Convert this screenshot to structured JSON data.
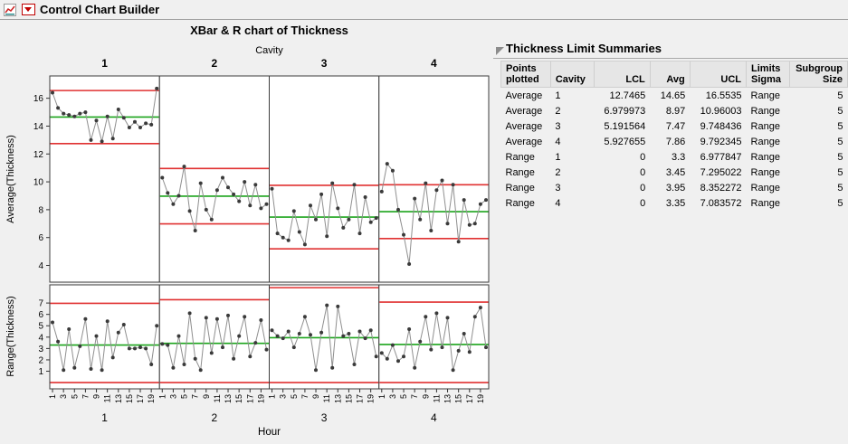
{
  "window": {
    "title": "Control Chart Builder"
  },
  "chart_data": {
    "type": "line",
    "title": "XBar & R chart of Thickness",
    "panel_axis_label": "Cavity",
    "xlabel": "Hour",
    "panels": [
      "1",
      "2",
      "3",
      "4"
    ],
    "hours": [
      1,
      2,
      3,
      4,
      5,
      6,
      7,
      8,
      9,
      10,
      11,
      12,
      13,
      14,
      15,
      16,
      17,
      18,
      19,
      20
    ],
    "x_tick_labels": [
      "1",
      "3",
      "5",
      "7",
      "9",
      "11",
      "13",
      "15",
      "17",
      "19"
    ],
    "colors": {
      "limit_line": "#e03131",
      "center_line": "#1ca41c",
      "point": "#3a3a3a",
      "connector": "#8f8f8f"
    },
    "xbar": {
      "ylabel": "Average(Thickness)",
      "ylim": [
        2.8,
        17.6
      ],
      "yticks": [
        4,
        6,
        8,
        10,
        12,
        14,
        16
      ],
      "series": [
        {
          "panel": "1",
          "lcl": 12.7465,
          "center": 14.65,
          "ucl": 16.5535,
          "values": [
            16.4,
            15.3,
            14.9,
            14.8,
            14.7,
            14.9,
            15.0,
            13.0,
            14.4,
            12.9,
            14.7,
            13.1,
            15.2,
            14.6,
            13.9,
            14.3,
            13.9,
            14.2,
            14.1,
            16.7
          ]
        },
        {
          "panel": "2",
          "lcl": 6.979973,
          "center": 8.97,
          "ucl": 10.96003,
          "values": [
            10.3,
            9.2,
            8.4,
            9.0,
            11.1,
            7.9,
            6.5,
            9.9,
            8.0,
            7.3,
            9.4,
            10.3,
            9.6,
            9.1,
            8.6,
            10.0,
            8.3,
            9.8,
            8.1,
            8.4
          ]
        },
        {
          "panel": "3",
          "lcl": 5.191564,
          "center": 7.47,
          "ucl": 9.748436,
          "values": [
            9.5,
            6.3,
            6.0,
            5.8,
            7.9,
            6.4,
            5.5,
            8.3,
            7.3,
            9.1,
            6.1,
            9.9,
            8.1,
            6.7,
            7.3,
            9.8,
            6.3,
            8.9,
            7.1,
            7.4
          ]
        },
        {
          "panel": "4",
          "lcl": 5.927655,
          "center": 7.86,
          "ucl": 9.792345,
          "values": [
            9.3,
            11.3,
            10.8,
            8.0,
            6.2,
            4.1,
            8.8,
            7.3,
            9.9,
            6.5,
            9.4,
            10.1,
            7.0,
            9.8,
            5.7,
            8.7,
            6.9,
            7.0,
            8.4,
            8.7
          ]
        }
      ]
    },
    "range": {
      "ylabel": "Range(Thickness)",
      "ylim": [
        -0.55,
        8.6
      ],
      "yticks": [
        1,
        2,
        3,
        4,
        5,
        6,
        7
      ],
      "series": [
        {
          "panel": "1",
          "lcl": 0,
          "center": 3.3,
          "ucl": 6.977847,
          "values": [
            5.3,
            3.6,
            1.1,
            4.7,
            1.3,
            3.2,
            5.6,
            1.2,
            4.1,
            1.1,
            5.4,
            2.2,
            4.4,
            5.1,
            3.0,
            3.0,
            3.1,
            3.0,
            1.6,
            5.0
          ]
        },
        {
          "panel": "2",
          "lcl": 0,
          "center": 3.45,
          "ucl": 7.295022,
          "values": [
            3.4,
            3.3,
            1.3,
            4.1,
            1.6,
            6.1,
            2.1,
            1.1,
            5.7,
            2.6,
            5.6,
            3.1,
            5.9,
            2.1,
            4.1,
            5.8,
            2.3,
            3.5,
            5.5,
            2.9
          ]
        },
        {
          "panel": "3",
          "lcl": 0,
          "center": 3.95,
          "ucl": 8.352272,
          "values": [
            4.6,
            4.1,
            3.9,
            4.5,
            3.1,
            4.3,
            5.8,
            4.2,
            1.1,
            4.4,
            6.8,
            1.3,
            6.7,
            4.1,
            4.3,
            1.6,
            4.5,
            3.9,
            4.6,
            2.3
          ]
        },
        {
          "panel": "4",
          "lcl": 0,
          "center": 3.35,
          "ucl": 7.083572,
          "values": [
            2.6,
            2.1,
            3.3,
            1.9,
            2.3,
            4.7,
            1.3,
            3.6,
            5.8,
            2.9,
            6.1,
            3.1,
            5.7,
            1.1,
            2.8,
            4.3,
            2.7,
            5.8,
            6.6,
            3.1
          ]
        }
      ]
    }
  },
  "summary": {
    "title": "Thickness Limit Summaries",
    "columns": [
      {
        "lines": [
          "Points",
          "plotted"
        ],
        "align": "left"
      },
      {
        "lines": [
          "Cavity"
        ],
        "align": "left"
      },
      {
        "lines": [
          "LCL"
        ],
        "align": "right"
      },
      {
        "lines": [
          "Avg"
        ],
        "align": "right"
      },
      {
        "lines": [
          "UCL"
        ],
        "align": "right"
      },
      {
        "lines": [
          "Limits",
          "Sigma"
        ],
        "align": "left"
      },
      {
        "lines": [
          "Subgroup",
          "Size"
        ],
        "align": "right"
      }
    ],
    "rows": [
      [
        "Average",
        "1",
        "12.7465",
        "14.65",
        "16.5535",
        "Range",
        "5"
      ],
      [
        "Average",
        "2",
        "6.979973",
        "8.97",
        "10.96003",
        "Range",
        "5"
      ],
      [
        "Average",
        "3",
        "5.191564",
        "7.47",
        "9.748436",
        "Range",
        "5"
      ],
      [
        "Average",
        "4",
        "5.927655",
        "7.86",
        "9.792345",
        "Range",
        "5"
      ],
      [
        "Range",
        "1",
        "0",
        "3.3",
        "6.977847",
        "Range",
        "5"
      ],
      [
        "Range",
        "2",
        "0",
        "3.45",
        "7.295022",
        "Range",
        "5"
      ],
      [
        "Range",
        "3",
        "0",
        "3.95",
        "8.352272",
        "Range",
        "5"
      ],
      [
        "Range",
        "4",
        "0",
        "3.35",
        "7.083572",
        "Range",
        "5"
      ]
    ]
  }
}
